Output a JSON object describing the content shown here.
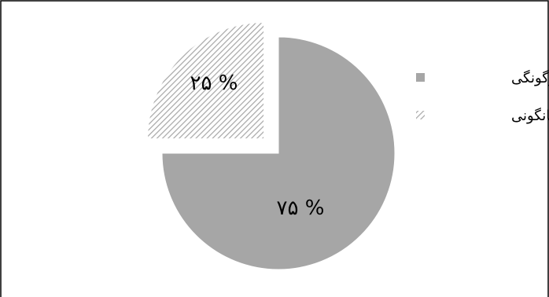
{
  "chart_data": {
    "type": "pie",
    "slices": [
      {
        "name": "دگرگونگی",
        "value": 75,
        "label": "% ۷۵",
        "color": "#a6a6a6",
        "pattern": "solid",
        "exploded": false
      },
      {
        "name": "همانگونی",
        "value": 25,
        "label": "% ۲۵",
        "color": "#a6a6a6",
        "pattern": "hatched",
        "exploded": true
      }
    ],
    "legend": {
      "position": "right",
      "entries": [
        "دگرگونگی",
        "همانگونی"
      ]
    }
  }
}
